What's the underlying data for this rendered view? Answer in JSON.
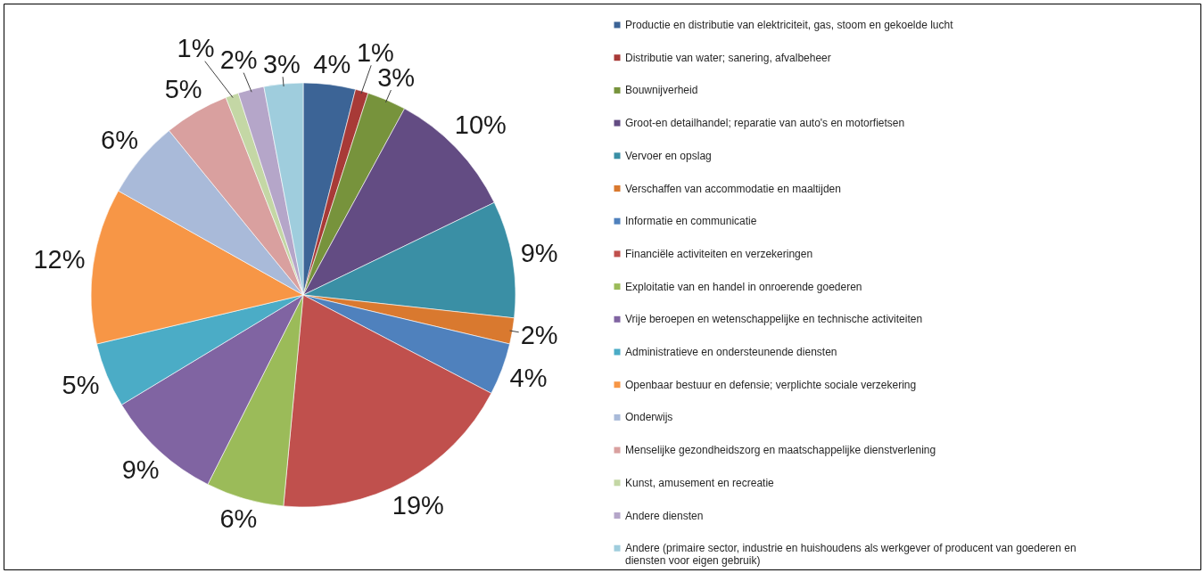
{
  "chart_data": {
    "type": "pie",
    "categories": [
      "Productie en distributie van elektriciteit, gas, stoom en gekoelde lucht",
      "Distributie van water; sanering, afvalbeheer",
      "Bouwnijverheid",
      "Groot-en detailhandel; reparatie van auto's en motorfietsen",
      "Vervoer en opslag",
      "Verschaffen van accommodatie en maaltijden",
      "Informatie en communicatie",
      "Financiële activiteiten en verzekeringen",
      "Exploitatie van en handel in onroerende goederen",
      "Vrije beroepen en wetenschappelijke en technische activiteiten",
      "Administratieve en ondersteunende diensten",
      "Openbaar bestuur en defensie; verplichte sociale verzekering",
      "Onderwijs",
      "Menselijke gezondheidszorg en maatschappelijke dienstverlening",
      "Kunst, amusement en recreatie",
      "Andere diensten",
      "Andere (primaire sector, industrie en huishoudens als werkgever of producent van goederen en diensten voor eigen gebruik)"
    ],
    "values": [
      4,
      1,
      3,
      10,
      9,
      2,
      4,
      19,
      6,
      9,
      5,
      12,
      6,
      5,
      1,
      2,
      3
    ],
    "value_labels": [
      "4%",
      "1%",
      "3%",
      "10%",
      "9%",
      "2%",
      "4%",
      "19%",
      "6%",
      "9%",
      "5%",
      "12%",
      "6%",
      "5%",
      "1%",
      "2%",
      "3%"
    ],
    "colors": [
      "#3c6496",
      "#a83a37",
      "#77933c",
      "#634c83",
      "#3a8fa5",
      "#d9792f",
      "#4f81bd",
      "#c0504d",
      "#9bbb59",
      "#8064a2",
      "#4bacc6",
      "#f79646",
      "#a9bad9",
      "#d9a09f",
      "#c4d7a5",
      "#b5a6c9",
      "#9fcddd"
    ],
    "legend": "right"
  }
}
